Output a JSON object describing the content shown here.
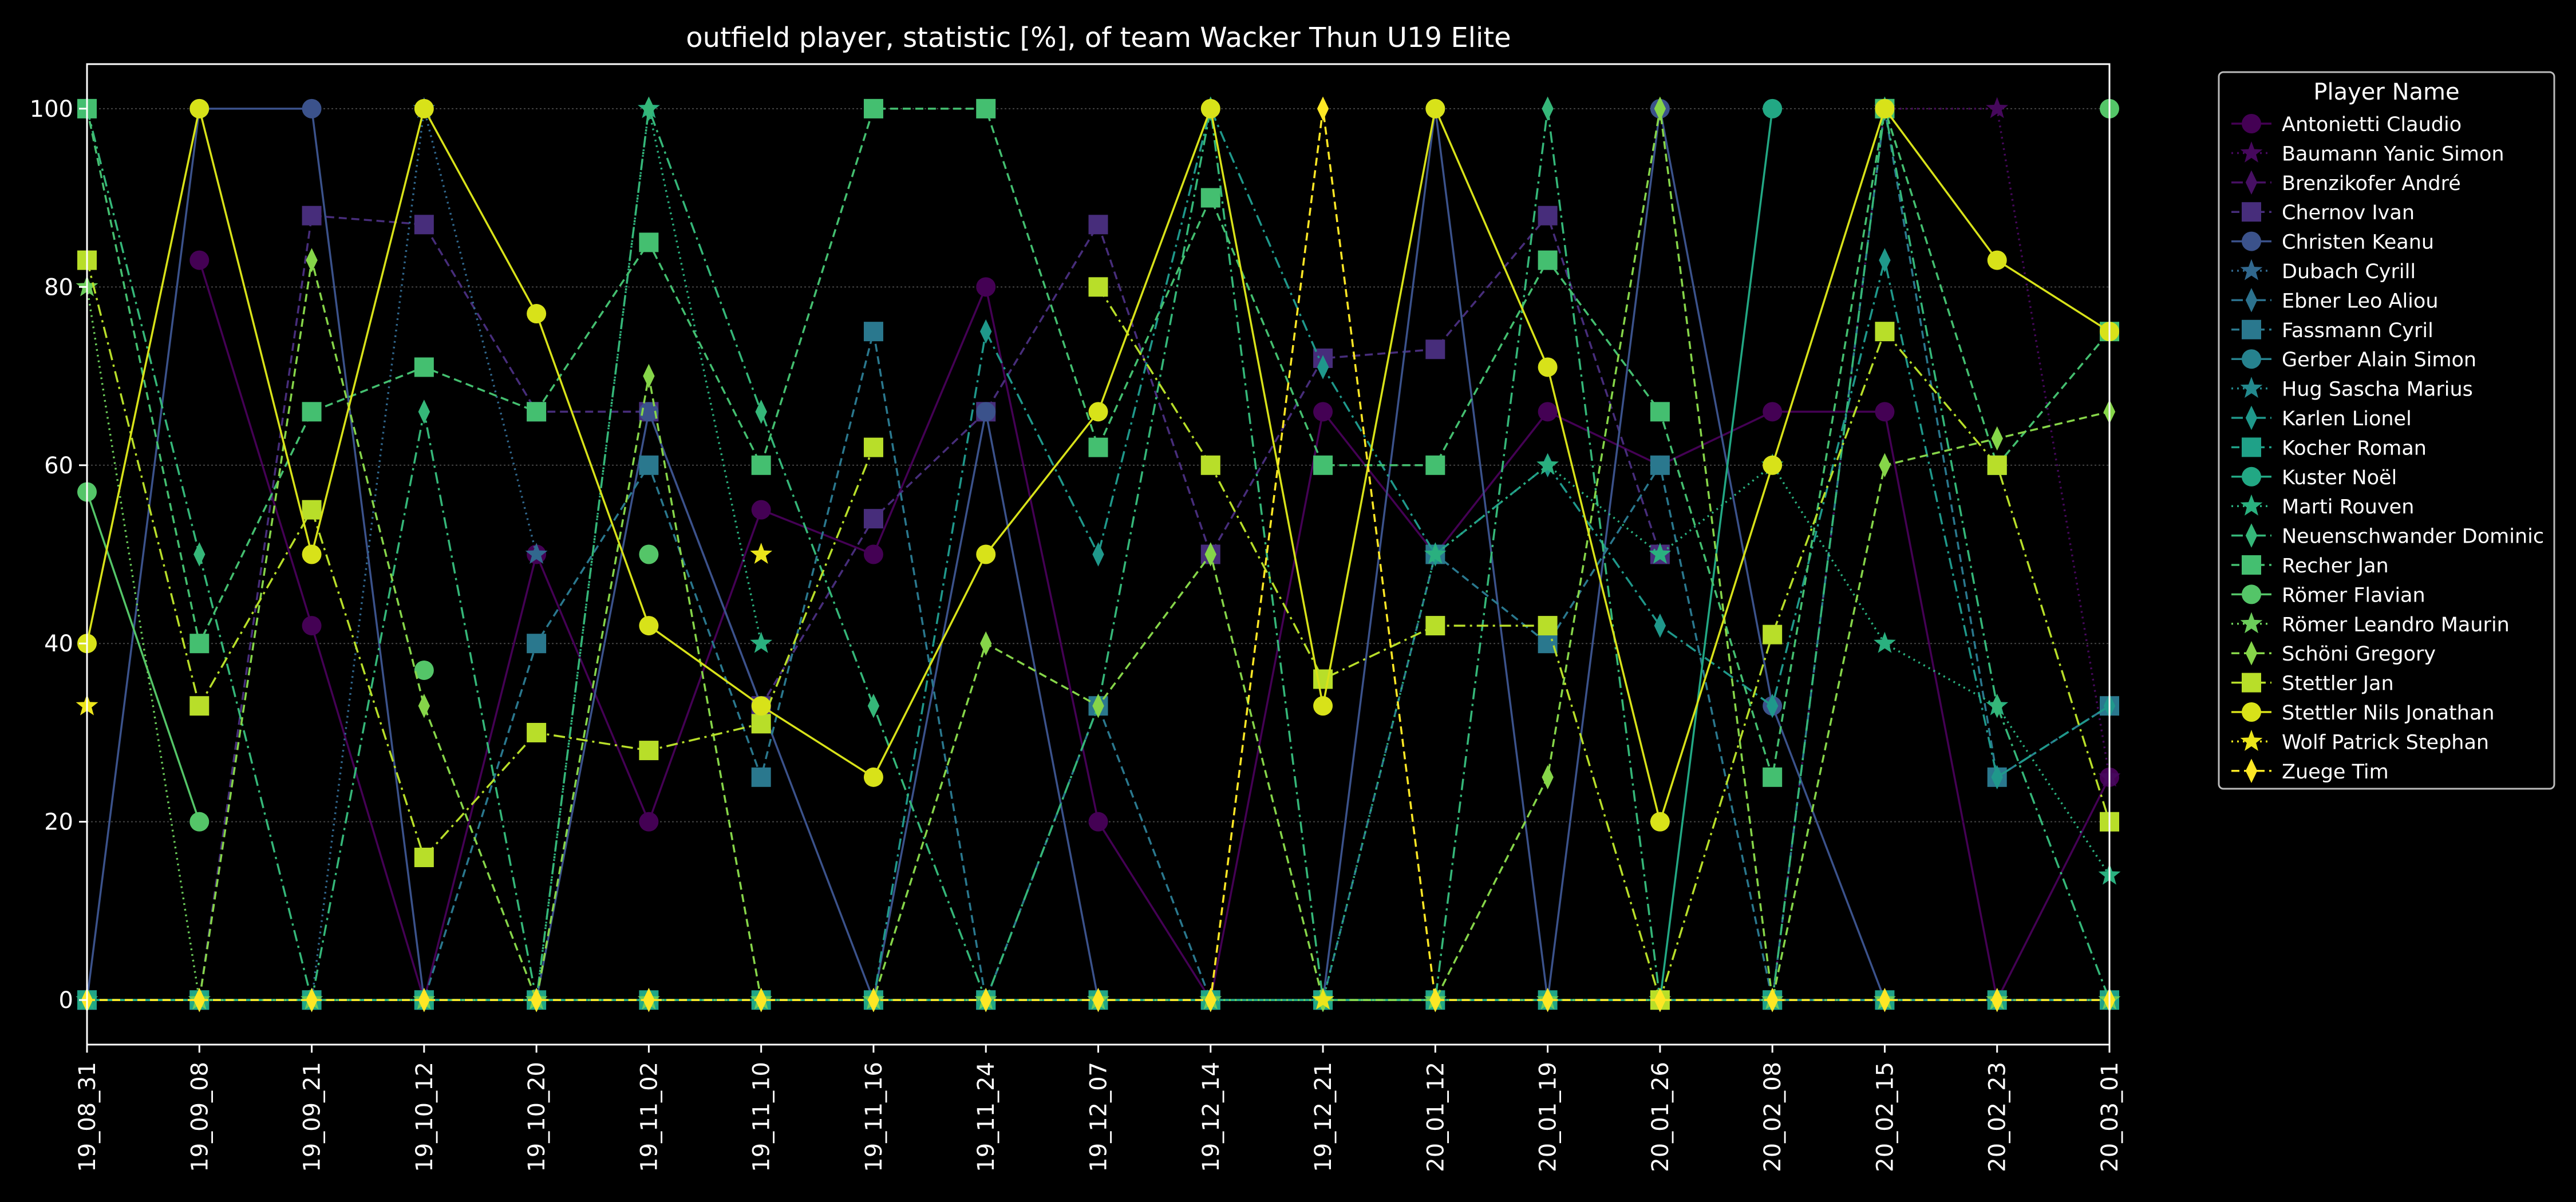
{
  "chart_data": {
    "type": "line",
    "title": "outfield player, statistic [%], of team Wacker Thun U19 Elite",
    "xlabel": "",
    "ylabel": "",
    "x": [
      "19_08_31",
      "19_09_08",
      "19_09_21",
      "19_10_12",
      "19_10_20",
      "19_11_02",
      "19_11_10",
      "19_11_16",
      "19_11_24",
      "19_12_07",
      "19_12_14",
      "19_12_21",
      "20_01_12",
      "20_01_19",
      "20_01_26",
      "20_02_08",
      "20_02_15",
      "20_02_23",
      "20_03_01"
    ],
    "ylim": [
      -5,
      105
    ],
    "yticks": [
      0,
      20,
      40,
      60,
      80,
      100
    ],
    "grid": "horizontal",
    "legend": {
      "title": "Player Name",
      "placement": "outside-right"
    },
    "series": [
      {
        "name": "Antonietti Claudio",
        "color": "#440154",
        "marker": "circle",
        "dash": "solid",
        "values": [
          null,
          83,
          42,
          0,
          50,
          20,
          55,
          50,
          80,
          20,
          0,
          66,
          50,
          66,
          60,
          66,
          66,
          0,
          25
        ]
      },
      {
        "name": "Baumann Yanic Simon",
        "color": "#46085c",
        "marker": "star",
        "dash": "dotted",
        "values": [
          0,
          0,
          0,
          0,
          0,
          0,
          0,
          0,
          0,
          0,
          0,
          0,
          0,
          0,
          0,
          0,
          100,
          100,
          25
        ]
      },
      {
        "name": "Brenzikofer André",
        "color": "#471063",
        "marker": "thin_diamond",
        "dash": "dashdot",
        "values": [
          0,
          0,
          0,
          0,
          0,
          0,
          0,
          0,
          0,
          0,
          0,
          0,
          0,
          0,
          0,
          0,
          0,
          0,
          0
        ]
      },
      {
        "name": "Chernov Ivan",
        "color": "#472d7b",
        "marker": "square",
        "dash": "dashed",
        "values": [
          0,
          0,
          88,
          87,
          66,
          66,
          33,
          54,
          66,
          87,
          50,
          72,
          73,
          88,
          50,
          null,
          null,
          null,
          null
        ]
      },
      {
        "name": "Christen Keanu",
        "color": "#3b528b",
        "marker": "circle",
        "dash": "solid",
        "values": [
          0,
          100,
          100,
          0,
          0,
          66,
          33,
          0,
          66,
          0,
          0,
          0,
          100,
          0,
          100,
          33,
          0,
          0,
          0
        ]
      },
      {
        "name": "Dubach Cyrill",
        "color": "#31688e",
        "marker": "star",
        "dash": "dotted",
        "values": [
          0,
          0,
          0,
          100,
          50,
          null,
          null,
          null,
          null,
          null,
          null,
          null,
          null,
          null,
          null,
          null,
          null,
          null,
          null
        ]
      },
      {
        "name": "Ebner Leo Aliou",
        "color": "#2c728e",
        "marker": "thin_diamond",
        "dash": "dashdot",
        "values": [
          0,
          0,
          0,
          0,
          0,
          0,
          0,
          0,
          0,
          0,
          0,
          0,
          0,
          0,
          0,
          0,
          0,
          0,
          0
        ]
      },
      {
        "name": "Fassmann Cyril",
        "color": "#2a788e",
        "marker": "square",
        "dash": "dashed",
        "values": [
          0,
          0,
          0,
          0,
          40,
          60,
          25,
          75,
          0,
          33,
          0,
          0,
          50,
          40,
          60,
          0,
          100,
          25,
          33
        ]
      },
      {
        "name": "Gerber Alain Simon",
        "color": "#26828e",
        "marker": "circle",
        "dash": "solid",
        "values": [
          0,
          0,
          0,
          0,
          0,
          0,
          0,
          0,
          0,
          0,
          0,
          0,
          0,
          0,
          0,
          0,
          0,
          0,
          0
        ]
      },
      {
        "name": "Hug Sascha Marius",
        "color": "#23898e",
        "marker": "star",
        "dash": "dotted",
        "values": [
          0,
          0,
          0,
          0,
          0,
          0,
          0,
          0,
          0,
          0,
          0,
          0,
          0,
          0,
          0,
          0,
          0,
          0,
          0
        ]
      },
      {
        "name": "Karlen Lionel",
        "color": "#1f988b",
        "marker": "thin_diamond",
        "dash": "dashdot",
        "values": [
          0,
          0,
          0,
          0,
          0,
          0,
          0,
          0,
          75,
          50,
          100,
          71,
          50,
          60,
          42,
          33,
          83,
          25,
          33
        ]
      },
      {
        "name": "Kocher Roman",
        "color": "#1fa188",
        "marker": "square",
        "dash": "dashed",
        "values": [
          0,
          0,
          0,
          0,
          0,
          0,
          0,
          0,
          0,
          0,
          0,
          0,
          0,
          0,
          0,
          0,
          0,
          0,
          0
        ]
      },
      {
        "name": "Kuster Noël",
        "color": "#22a884",
        "marker": "circle",
        "dash": "solid",
        "values": [
          0,
          0,
          0,
          0,
          0,
          0,
          0,
          0,
          0,
          0,
          0,
          0,
          0,
          0,
          0,
          100,
          null,
          null,
          null
        ]
      },
      {
        "name": "Marti Rouven",
        "color": "#2ab07f",
        "marker": "star",
        "dash": "dotted",
        "values": [
          0,
          0,
          0,
          0,
          0,
          100,
          40,
          null,
          null,
          null,
          null,
          0,
          50,
          60,
          50,
          60,
          40,
          33,
          14
        ]
      },
      {
        "name": "Neuenschwander Dominic",
        "color": "#35b779",
        "marker": "thin_diamond",
        "dash": "dashdot",
        "values": [
          100,
          50,
          0,
          66,
          0,
          100,
          66,
          33,
          0,
          33,
          100,
          0,
          0,
          100,
          0,
          0,
          100,
          33,
          0
        ]
      },
      {
        "name": "Recher Jan",
        "color": "#44bf70",
        "marker": "square",
        "dash": "dashed",
        "values": [
          100,
          40,
          66,
          71,
          66,
          85,
          60,
          100,
          100,
          62,
          90,
          60,
          60,
          83,
          66,
          25,
          100,
          60,
          75
        ]
      },
      {
        "name": "Römer Flavian",
        "color": "#54c568",
        "marker": "circle",
        "dash": "solid",
        "values": [
          57,
          20,
          null,
          37,
          null,
          50,
          null,
          null,
          null,
          null,
          null,
          null,
          null,
          null,
          null,
          null,
          null,
          null,
          100
        ]
      },
      {
        "name": "Römer Leandro Maurin",
        "color": "#6ccd5a",
        "marker": "star",
        "dash": "dotted",
        "values": [
          80,
          0,
          0,
          0,
          0,
          0,
          0,
          0,
          0,
          0,
          0,
          0,
          0,
          0,
          0,
          0,
          0,
          0,
          0
        ]
      },
      {
        "name": "Schöni Gregory",
        "color": "#86d549",
        "marker": "thin_diamond",
        "dash": "dashed",
        "values": [
          0,
          0,
          83,
          33,
          0,
          70,
          0,
          0,
          40,
          33,
          50,
          0,
          0,
          25,
          100,
          0,
          60,
          63,
          66
        ]
      },
      {
        "name": "Stettler Jan",
        "color": "#b8de29",
        "marker": "square",
        "dash": "dashdot",
        "values": [
          83,
          33,
          55,
          16,
          30,
          28,
          31,
          62,
          null,
          80,
          60,
          36,
          42,
          42,
          0,
          41,
          75,
          60,
          20
        ]
      },
      {
        "name": "Stettler Nils Jonathan",
        "color": "#d8e219",
        "marker": "circle",
        "dash": "solid",
        "values": [
          40,
          100,
          50,
          100,
          77,
          42,
          33,
          25,
          50,
          66,
          100,
          33,
          100,
          71,
          20,
          60,
          100,
          83,
          75
        ]
      },
      {
        "name": "Wolf Patrick Stephan",
        "color": "#ece51b",
        "marker": "star",
        "dash": "dotted",
        "values": [
          33,
          null,
          null,
          null,
          null,
          null,
          50,
          null,
          null,
          null,
          null,
          0,
          null,
          null,
          null,
          null,
          null,
          null,
          null
        ]
      },
      {
        "name": "Zuege Tim",
        "color": "#fde725",
        "marker": "thin_diamond",
        "dash": "dashed",
        "values": [
          0,
          0,
          0,
          0,
          0,
          0,
          0,
          0,
          0,
          0,
          0,
          100,
          0,
          0,
          0,
          0,
          0,
          0,
          0
        ]
      }
    ]
  }
}
